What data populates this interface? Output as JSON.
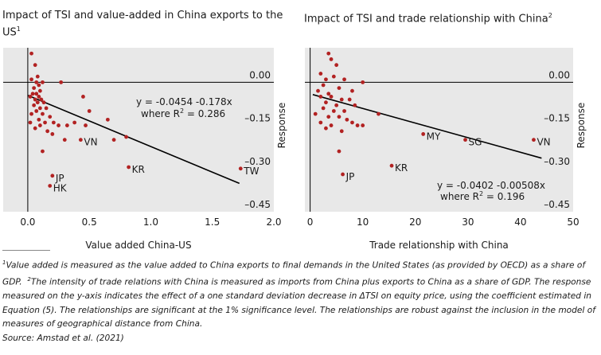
{
  "footnotes": {
    "n1": "1",
    "n1_text": "Value added is measured as the value added to China exports to final demands in the United States (as provided by OECD) as a share of GDP.",
    "n2": "2",
    "n2_text": "The intensity of trade relations with China is measured as imports from China plus exports to China as a share of GDP. The response measured on the y-axis indicates the effect of a one standard deviation decrease in ΔTSI on equity price, using the coefficient estimated in Equation (5). The relationships are significant at the 1% significance level. The relationships are robust against the inclusion in the model of measures of geographical distance from China.",
    "source": "Source: Amstad et al. (2021)"
  },
  "colors": {
    "panel_bg": "#e8e8e8",
    "points": "#b22222",
    "line": "#000000"
  },
  "chart_data": [
    {
      "type": "scatter",
      "title": "Impact of TSI and value-added in China exports to the US",
      "title_sup": "1",
      "xlabel": "Value added China-US",
      "ylabel": "Response",
      "xlim": [
        -0.2,
        2.0
      ],
      "ylim": [
        -0.45,
        0.12
      ],
      "xticks": [
        "0.0",
        "0.5",
        "1.0",
        "1.5",
        "2.0"
      ],
      "xtick_values": [
        0.0,
        0.5,
        1.0,
        1.5,
        2.0
      ],
      "yticks": [
        "0.00",
        "–0.15",
        "–0.30",
        "–0.45"
      ],
      "ytick_values": [
        0.0,
        -0.15,
        -0.3,
        -0.45
      ],
      "grid": false,
      "equation": "y = -0.0454 -0.178x",
      "r2_text": "where R",
      "r2_sup": "2",
      "r2_value": " = 0.286",
      "fit": {
        "intercept": -0.0454,
        "slope": -0.178,
        "x_range": [
          0.0,
          1.72
        ]
      },
      "labeled_points": [
        {
          "label": "TW",
          "x": 1.73,
          "y": -0.3
        },
        {
          "label": "KR",
          "x": 0.82,
          "y": -0.295
        },
        {
          "label": "VN",
          "x": 0.43,
          "y": -0.2
        },
        {
          "label": "JP",
          "x": 0.2,
          "y": -0.325
        },
        {
          "label": "HK",
          "x": 0.18,
          "y": -0.36
        }
      ],
      "points": [
        [
          0.03,
          0.1
        ],
        [
          0.06,
          0.06
        ],
        [
          0.08,
          0.02
        ],
        [
          0.03,
          0.01
        ],
        [
          0.07,
          0.0
        ],
        [
          0.12,
          0.0
        ],
        [
          0.09,
          -0.01
        ],
        [
          0.05,
          -0.02
        ],
        [
          0.1,
          -0.03
        ],
        [
          0.04,
          -0.04
        ],
        [
          0.07,
          -0.04
        ],
        [
          0.09,
          -0.05
        ],
        [
          0.02,
          -0.05
        ],
        [
          0.06,
          -0.06
        ],
        [
          0.11,
          -0.06
        ],
        [
          0.08,
          -0.07
        ],
        [
          0.13,
          -0.07
        ],
        [
          0.05,
          -0.08
        ],
        [
          0.1,
          -0.09
        ],
        [
          0.15,
          -0.09
        ],
        [
          0.07,
          -0.1
        ],
        [
          0.12,
          -0.11
        ],
        [
          0.03,
          -0.11
        ],
        [
          0.18,
          -0.12
        ],
        [
          0.09,
          -0.13
        ],
        [
          0.14,
          -0.14
        ],
        [
          0.02,
          -0.14
        ],
        [
          0.21,
          -0.14
        ],
        [
          0.1,
          -0.15
        ],
        [
          0.06,
          -0.16
        ],
        [
          0.16,
          -0.17
        ],
        [
          0.25,
          -0.15
        ],
        [
          0.32,
          -0.15
        ],
        [
          0.45,
          -0.05
        ],
        [
          0.5,
          -0.1
        ],
        [
          0.47,
          -0.15
        ],
        [
          0.38,
          -0.14
        ],
        [
          0.3,
          -0.2
        ],
        [
          0.2,
          -0.18
        ],
        [
          0.27,
          0.0
        ],
        [
          0.65,
          -0.13
        ],
        [
          0.7,
          -0.2
        ],
        [
          0.8,
          -0.19
        ],
        [
          0.12,
          -0.24
        ],
        [
          0.43,
          -0.2
        ],
        [
          0.82,
          -0.295
        ],
        [
          1.73,
          -0.3
        ],
        [
          0.2,
          -0.325
        ],
        [
          0.18,
          -0.36
        ]
      ]
    },
    {
      "type": "scatter",
      "title": "Impact of TSI and trade relationship with China",
      "title_sup": "2",
      "xlabel": "Trade relationship with China",
      "ylabel": "Response",
      "xlim": [
        -1,
        50
      ],
      "ylim": [
        -0.45,
        0.12
      ],
      "xticks": [
        "0",
        "10",
        "20",
        "30",
        "40",
        "50"
      ],
      "xtick_values": [
        0,
        10,
        20,
        30,
        40,
        50
      ],
      "yticks": [
        "0.00",
        "–0.15",
        "–0.30",
        "–0.45"
      ],
      "ytick_values": [
        0.0,
        -0.15,
        -0.3,
        -0.45
      ],
      "grid": false,
      "equation": "y = -0.0402 -0.00508x",
      "r2_text": "where R",
      "r2_sup": "2",
      "r2_value": " = 0.196",
      "fit": {
        "intercept": -0.0402,
        "slope": -0.00508,
        "x_range": [
          0.5,
          44
        ]
      },
      "labeled_points": [
        {
          "label": "VN",
          "x": 42.5,
          "y": -0.2
        },
        {
          "label": "SG",
          "x": 29.5,
          "y": -0.2
        },
        {
          "label": "MY",
          "x": 21.5,
          "y": -0.18
        },
        {
          "label": "KR",
          "x": 15.5,
          "y": -0.29
        },
        {
          "label": "JP",
          "x": 6.2,
          "y": -0.32
        }
      ],
      "points": [
        [
          3.5,
          0.1
        ],
        [
          4.0,
          0.08
        ],
        [
          5.0,
          0.06
        ],
        [
          2.0,
          0.03
        ],
        [
          4.5,
          0.02
        ],
        [
          3.0,
          0.01
        ],
        [
          6.5,
          0.01
        ],
        [
          10.0,
          0.0
        ],
        [
          2.5,
          -0.01
        ],
        [
          5.5,
          -0.02
        ],
        [
          1.5,
          -0.03
        ],
        [
          3.5,
          -0.04
        ],
        [
          4.0,
          -0.05
        ],
        [
          2.0,
          -0.05
        ],
        [
          6.0,
          -0.06
        ],
        [
          7.5,
          -0.06
        ],
        [
          3.0,
          -0.07
        ],
        [
          5.0,
          -0.08
        ],
        [
          8.5,
          -0.08
        ],
        [
          2.5,
          -0.09
        ],
        [
          4.5,
          -0.1
        ],
        [
          6.5,
          -0.1
        ],
        [
          1.0,
          -0.11
        ],
        [
          3.5,
          -0.12
        ],
        [
          5.5,
          -0.12
        ],
        [
          7.0,
          -0.13
        ],
        [
          2.0,
          -0.14
        ],
        [
          8.0,
          -0.14
        ],
        [
          4.0,
          -0.15
        ],
        [
          9.0,
          -0.15
        ],
        [
          6.0,
          -0.17
        ],
        [
          10.0,
          -0.15
        ],
        [
          13.0,
          -0.11
        ],
        [
          8.0,
          -0.03
        ],
        [
          5.5,
          -0.24
        ],
        [
          3.0,
          -0.16
        ],
        [
          42.5,
          -0.2
        ],
        [
          29.5,
          -0.2
        ],
        [
          21.5,
          -0.18
        ],
        [
          15.5,
          -0.29
        ],
        [
          6.2,
          -0.32
        ]
      ]
    }
  ]
}
